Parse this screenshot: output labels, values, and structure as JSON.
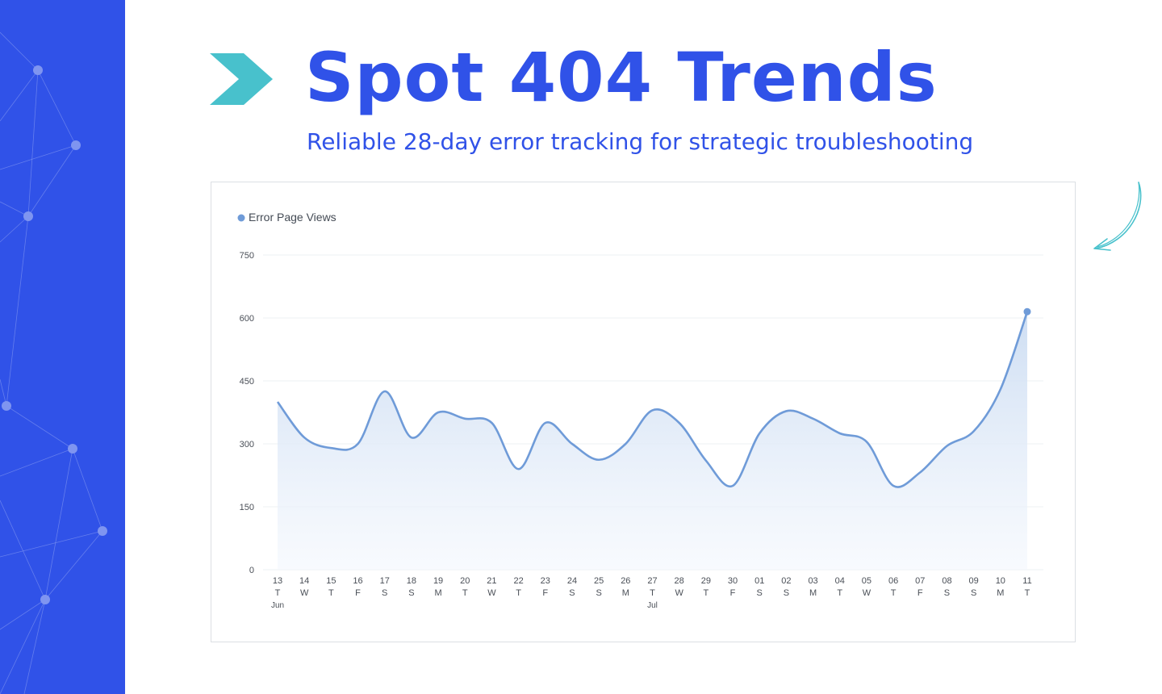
{
  "header": {
    "title": "Spot 404 Trends",
    "subtitle": "Reliable 28-day error tracking for strategic troubleshooting"
  },
  "icons": {
    "title_marker": "chevron-right-icon",
    "side_decoration": "curved-arrow-icon",
    "sidebar_pattern": "network-nodes-icon"
  },
  "colors": {
    "brand_blue": "#3052e8",
    "accent_teal": "#48c1cc",
    "series_line": "#6f9bd8",
    "area_fill_top": "#cbdcf2"
  },
  "chart_data": {
    "type": "area",
    "title": "",
    "xlabel": "",
    "ylabel": "",
    "ylim": [
      0,
      750
    ],
    "y_ticks": [
      0,
      150,
      300,
      450,
      600,
      750
    ],
    "grid": true,
    "legend_position": "top-left",
    "x": [
      "13",
      "14",
      "15",
      "16",
      "17",
      "18",
      "19",
      "20",
      "21",
      "22",
      "23",
      "24",
      "25",
      "26",
      "27",
      "28",
      "29",
      "30",
      "01",
      "02",
      "03",
      "04",
      "05",
      "06",
      "07",
      "08",
      "09",
      "10",
      "11"
    ],
    "weekdays": [
      "T",
      "W",
      "T",
      "F",
      "S",
      "S",
      "M",
      "T",
      "W",
      "T",
      "F",
      "S",
      "S",
      "M",
      "T",
      "W",
      "T",
      "F",
      "S",
      "S",
      "M",
      "T",
      "W",
      "T",
      "F",
      "S",
      "S",
      "M",
      "T"
    ],
    "month_labels": [
      {
        "index": 0,
        "label": "Jun"
      },
      {
        "index": 14,
        "label": "Jul"
      }
    ],
    "series": [
      {
        "name": "Error Page Views",
        "values": [
          400,
          315,
          290,
          300,
          425,
          315,
          375,
          360,
          350,
          240,
          350,
          300,
          262,
          300,
          380,
          350,
          260,
          200,
          325,
          378,
          360,
          325,
          305,
          200,
          232,
          295,
          330,
          430,
          615
        ],
        "highlight_last": true
      }
    ]
  }
}
